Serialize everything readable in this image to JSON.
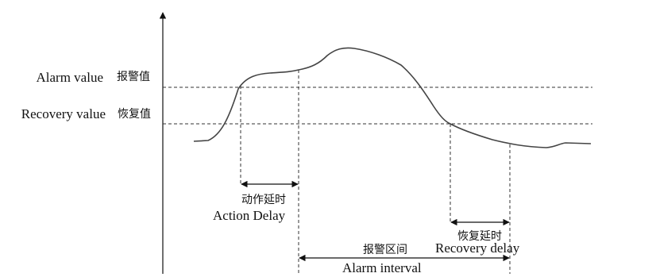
{
  "thresholds": {
    "alarm": {
      "label_en": "Alarm value",
      "label_zh": "报警值"
    },
    "recovery": {
      "label_en": "Recovery value",
      "label_zh": "恢复值"
    }
  },
  "spans": {
    "action_delay": {
      "label_zh": "动作延时",
      "label_en": "Action Delay"
    },
    "recovery_delay": {
      "label_zh": "恢复延时",
      "label_en": "Recovery delay"
    },
    "alarm_interval": {
      "label_zh": "报警区间",
      "label_en": "Alarm interval"
    }
  },
  "colors": {
    "curve": "#444444",
    "lines": "#111111",
    "background": "#ffffff"
  }
}
